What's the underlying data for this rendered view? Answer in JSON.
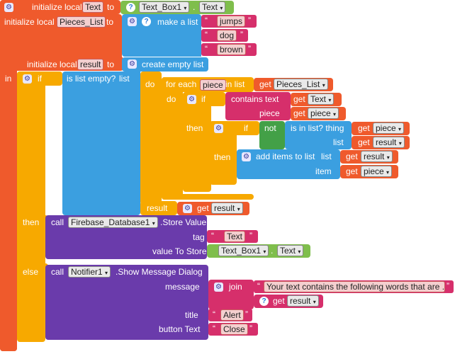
{
  "colors": {
    "variables": "#ef5a2c",
    "control": "#f7a900",
    "lists": "#3b9fe0",
    "text": "#d62f6b",
    "component": "#6a3bab",
    "property": "#7fbe4c",
    "logic": "#43a047"
  },
  "init_text": {
    "label": "initialize local",
    "var": "Text",
    "to": "to"
  },
  "text_box_text": {
    "component": "Text_Box1",
    "dot": ".",
    "prop": "Text"
  },
  "init_pieces": {
    "label": "initialize local",
    "var": "Pieces_List",
    "to": "to"
  },
  "make_list": {
    "label": "make a list",
    "items": [
      "jumps",
      "dog",
      "brown"
    ]
  },
  "init_result": {
    "label": "initialize local",
    "var": "result",
    "to": "to"
  },
  "create_empty": {
    "label": "create empty list"
  },
  "in_label": "in",
  "if_block": {
    "if": "if",
    "then": "then",
    "else": "else"
  },
  "is_list_empty": {
    "label": "is list empty?",
    "list": "list"
  },
  "do_label": "do",
  "foreach": {
    "label": "for each",
    "var": "piece",
    "in_list": "in list"
  },
  "get_pieces_list": {
    "get": "get",
    "var": "Pieces_List"
  },
  "inner_do": "do",
  "inner_if": {
    "if": "if",
    "then": "then"
  },
  "contains": {
    "label": "contains text",
    "piece": "piece",
    "get": "get",
    "text_var": "Text",
    "piece_var": "piece"
  },
  "not_label": "not",
  "is_in_list": {
    "label": "is in list? thing",
    "list": "list",
    "get": "get",
    "thing_var": "piece",
    "list_var": "result"
  },
  "add_items": {
    "label": "add items to list",
    "list": "list",
    "item": "item",
    "get": "get",
    "list_var": "result",
    "item_var": "piece"
  },
  "result_label": "result",
  "get_result": {
    "get": "get",
    "var": "result"
  },
  "then_call": {
    "call": "call",
    "component": "Firebase_Database1",
    "method": ".Store Value",
    "tag": "tag",
    "tag_value": "Text",
    "value_label": "value To Store",
    "tb_component": "Text_Box1",
    "tb_dot": ".",
    "tb_prop": "Text"
  },
  "else_call": {
    "call": "call",
    "component": "Notifier1",
    "method": ".Show Message Dialog",
    "message": "message",
    "join": "join",
    "join_text": "Your text contains the following words that are ...",
    "get": "get",
    "get_var": "result",
    "title": "title",
    "title_value": "Alert",
    "button_text": "button Text",
    "button_value": "Close"
  }
}
